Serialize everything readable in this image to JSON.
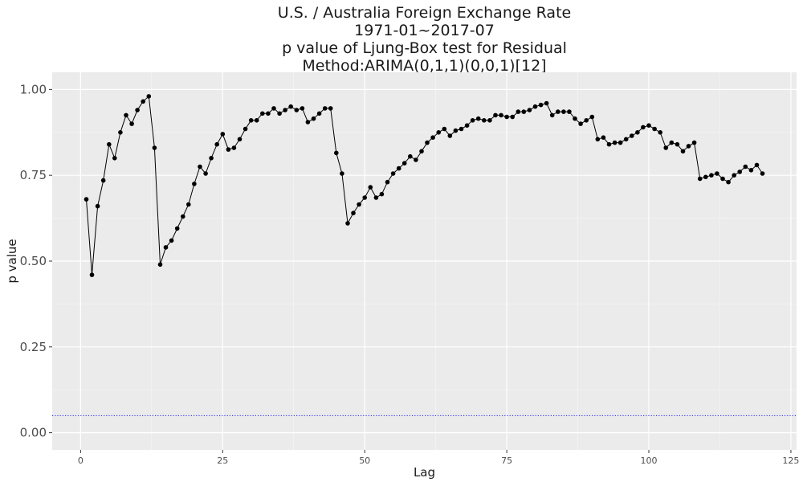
{
  "chart_data": {
    "type": "line",
    "title_lines": [
      "U.S. / Australia Foreign Exchange Rate",
      "1971-01~2017-07",
      "p value of Ljung-Box test for Residual",
      "Method:ARIMA(0,1,1)(0,0,1)[12]"
    ],
    "xlabel": "Lag",
    "ylabel": "p value",
    "xlim": [
      -5,
      126
    ],
    "ylim": [
      -0.05,
      1.05
    ],
    "x_ticks": [
      0,
      25,
      50,
      75,
      100,
      125
    ],
    "x_tick_labels": [
      "0",
      "25",
      "50",
      "75",
      "100",
      "125"
    ],
    "y_ticks": [
      0.0,
      0.25,
      0.5,
      0.75,
      1.0
    ],
    "y_tick_labels": [
      "0.00",
      "0.25",
      "0.50",
      "0.75",
      "1.00"
    ],
    "grid": true,
    "reference_line": {
      "y": 0.05,
      "color": "#0000ff",
      "style": "dotted"
    },
    "series": [
      {
        "color": "#000000",
        "x": [
          1,
          2,
          3,
          4,
          5,
          6,
          7,
          8,
          9,
          10,
          11,
          12,
          13,
          14,
          15,
          16,
          17,
          18,
          19,
          20,
          21,
          22,
          23,
          24,
          25,
          26,
          27,
          28,
          29,
          30,
          31,
          32,
          33,
          34,
          35,
          36,
          37,
          38,
          39,
          40,
          41,
          42,
          43,
          44,
          45,
          46,
          47,
          48,
          49,
          50,
          51,
          52,
          53,
          54,
          55,
          56,
          57,
          58,
          59,
          60,
          61,
          62,
          63,
          64,
          65,
          66,
          67,
          68,
          69,
          70,
          71,
          72,
          73,
          74,
          75,
          76,
          77,
          78,
          79,
          80,
          81,
          82,
          83,
          84,
          85,
          86,
          87,
          88,
          89,
          90,
          91,
          92,
          93,
          94,
          95,
          96,
          97,
          98,
          99,
          100,
          101,
          102,
          103,
          104,
          105,
          106,
          107,
          108,
          109,
          110,
          111,
          112,
          113,
          114,
          115,
          116,
          117,
          118,
          119,
          120
        ],
        "y": [
          0.68,
          0.46,
          0.66,
          0.735,
          0.84,
          0.8,
          0.875,
          0.925,
          0.9,
          0.94,
          0.965,
          0.98,
          0.83,
          0.49,
          0.54,
          0.56,
          0.595,
          0.63,
          0.665,
          0.725,
          0.775,
          0.755,
          0.8,
          0.84,
          0.87,
          0.825,
          0.83,
          0.855,
          0.885,
          0.91,
          0.91,
          0.93,
          0.93,
          0.945,
          0.93,
          0.94,
          0.95,
          0.94,
          0.945,
          0.905,
          0.915,
          0.93,
          0.945,
          0.945,
          0.815,
          0.755,
          0.61,
          0.64,
          0.665,
          0.685,
          0.715,
          0.685,
          0.695,
          0.73,
          0.755,
          0.77,
          0.785,
          0.805,
          0.795,
          0.82,
          0.845,
          0.86,
          0.875,
          0.885,
          0.865,
          0.88,
          0.885,
          0.895,
          0.91,
          0.915,
          0.91,
          0.91,
          0.925,
          0.925,
          0.92,
          0.92,
          0.935,
          0.935,
          0.94,
          0.95,
          0.955,
          0.96,
          0.925,
          0.935,
          0.935,
          0.935,
          0.915,
          0.9,
          0.91,
          0.92,
          0.855,
          0.86,
          0.84,
          0.845,
          0.845,
          0.855,
          0.865,
          0.875,
          0.89,
          0.895,
          0.885,
          0.875,
          0.83,
          0.845,
          0.84,
          0.82,
          0.835,
          0.845,
          0.74,
          0.745,
          0.75,
          0.755,
          0.74,
          0.73,
          0.75,
          0.76,
          0.775,
          0.765,
          0.78,
          0.755
        ]
      }
    ]
  }
}
